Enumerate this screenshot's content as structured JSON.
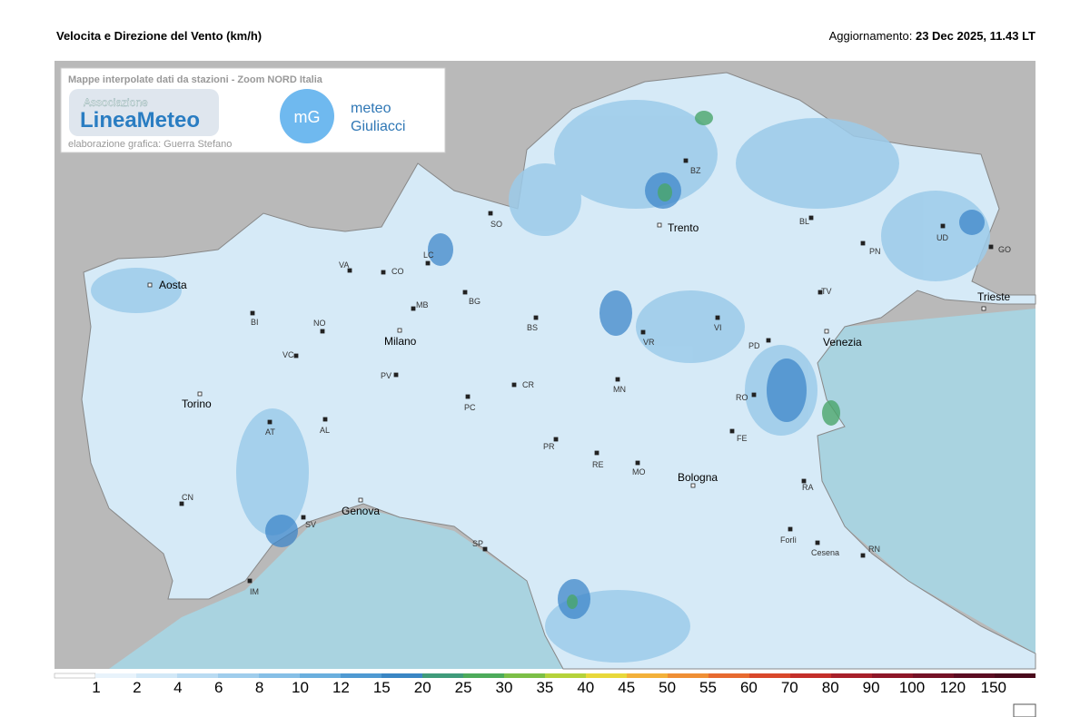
{
  "header": {
    "title": "Velocita e Direzione del Vento  (km/h)",
    "update_label": "Aggiornamento:",
    "update_value": "23 Dec 2025, 11.43 LT"
  },
  "credits": {
    "caption": "Mappe interpolate dati da stazioni - Zoom NORD Italia",
    "association": "Associazione",
    "brand": "LineaMeteo",
    "author": "elaborazione grafica: Guerra Stefano",
    "mg_logo": "mG",
    "mg_name_1": "meteo",
    "mg_name_2": "Giuliacci"
  },
  "cities": [
    "Aosta",
    "Torino",
    "Milano",
    "Genova",
    "Trento",
    "Venezia",
    "Bologna",
    "Trieste",
    "VA",
    "CO",
    "LC",
    "SO",
    "BI",
    "NO",
    "MB",
    "BG",
    "BS",
    "VC",
    "PV",
    "CR",
    "PC",
    "MN",
    "VR",
    "VI",
    "PD",
    "TV",
    "BL",
    "BZ",
    "PN",
    "UD",
    "GO",
    "RO",
    "FE",
    "AT",
    "AL",
    "CN",
    "SV",
    "IM",
    "SP",
    "PR",
    "RE",
    "MO",
    "RA",
    "Forlì",
    "Cesena",
    "RN"
  ],
  "scale": {
    "ticks": [
      1,
      2,
      4,
      6,
      8,
      10,
      12,
      15,
      20,
      25,
      30,
      35,
      40,
      45,
      50,
      55,
      60,
      70,
      80,
      90,
      100,
      120,
      150
    ]
  }
}
